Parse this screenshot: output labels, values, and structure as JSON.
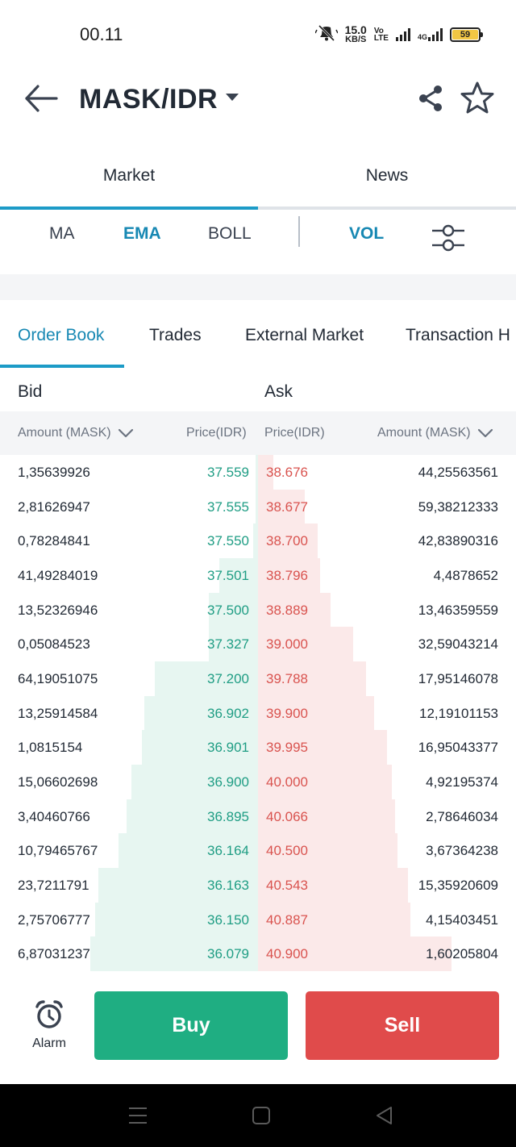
{
  "status_bar": {
    "time": "00.11",
    "net_speed_value": "15.0",
    "net_speed_unit": "KB/S",
    "volte_top": "Vo",
    "volte_bottom": "LTE",
    "network_type": "4G",
    "battery": "59",
    "icons": [
      "mute-icon",
      "signal-icon",
      "signal-4g-icon",
      "battery-icon"
    ]
  },
  "header": {
    "pair": "MASK/IDR",
    "icons": [
      "back-arrow-icon",
      "caret-down-icon",
      "share-icon",
      "star-icon"
    ]
  },
  "main_tabs": [
    {
      "label": "Market",
      "active": true
    },
    {
      "label": "News",
      "active": false
    }
  ],
  "indicators": [
    {
      "label": "MA",
      "active": false
    },
    {
      "label": "EMA",
      "active": true
    },
    {
      "label": "BOLL",
      "active": false
    },
    {
      "label": "VOL",
      "active": true
    }
  ],
  "sub_tabs": [
    {
      "label": "Order Book",
      "active": true
    },
    {
      "label": "Trades",
      "active": false
    },
    {
      "label": "External Market",
      "active": false
    },
    {
      "label": "Transaction H",
      "active": false
    }
  ],
  "book": {
    "bid_label": "Bid",
    "ask_label": "Ask",
    "bid_amount_header": "Amount (MASK)",
    "bid_price_header": "Price(IDR)",
    "ask_price_header": "Price(IDR)",
    "ask_amount_header": "Amount (MASK)",
    "colors": {
      "bid_text": "#1f9d84",
      "ask_text": "#d9534f",
      "bid_depth": "#e7f6f1",
      "ask_depth": "#fbe9e9"
    },
    "rows": [
      {
        "bid_amount": "1,35639926",
        "bid_price": "37.559",
        "ask_price": "38.676",
        "ask_amount": "44,25563561",
        "bid_depth": 0.01,
        "ask_depth": 0.06
      },
      {
        "bid_amount": "2,81626947",
        "bid_price": "37.555",
        "ask_price": "38.677",
        "ask_amount": "59,38212333",
        "bid_depth": 0.01,
        "ask_depth": 0.18
      },
      {
        "bid_amount": "0,78284841",
        "bid_price": "37.550",
        "ask_price": "38.700",
        "ask_amount": "42,83890316",
        "bid_depth": 0.02,
        "ask_depth": 0.23
      },
      {
        "bid_amount": "41,49284019",
        "bid_price": "37.501",
        "ask_price": "38.796",
        "ask_amount": "4,4878652",
        "bid_depth": 0.15,
        "ask_depth": 0.24
      },
      {
        "bid_amount": "13,52326946",
        "bid_price": "37.500",
        "ask_price": "38.889",
        "ask_amount": "13,46359559",
        "bid_depth": 0.19,
        "ask_depth": 0.28
      },
      {
        "bid_amount": "0,05084523",
        "bid_price": "37.327",
        "ask_price": "39.000",
        "ask_amount": "32,59043214",
        "bid_depth": 0.19,
        "ask_depth": 0.37
      },
      {
        "bid_amount": "64,19051075",
        "bid_price": "37.200",
        "ask_price": "39.788",
        "ask_amount": "17,95146078",
        "bid_depth": 0.4,
        "ask_depth": 0.42
      },
      {
        "bid_amount": "13,25914584",
        "bid_price": "36.902",
        "ask_price": "39.900",
        "ask_amount": "12,19101153",
        "bid_depth": 0.44,
        "ask_depth": 0.45
      },
      {
        "bid_amount": "1,0815154",
        "bid_price": "36.901",
        "ask_price": "39.995",
        "ask_amount": "16,95043377",
        "bid_depth": 0.45,
        "ask_depth": 0.5
      },
      {
        "bid_amount": "15,06602698",
        "bid_price": "36.900",
        "ask_price": "40.000",
        "ask_amount": "4,92195374",
        "bid_depth": 0.49,
        "ask_depth": 0.52
      },
      {
        "bid_amount": "3,40460766",
        "bid_price": "36.895",
        "ask_price": "40.066",
        "ask_amount": "2,78646034",
        "bid_depth": 0.51,
        "ask_depth": 0.53
      },
      {
        "bid_amount": "10,79465767",
        "bid_price": "36.164",
        "ask_price": "40.500",
        "ask_amount": "3,67364238",
        "bid_depth": 0.54,
        "ask_depth": 0.54
      },
      {
        "bid_amount": "23,7211791",
        "bid_price": "36.163",
        "ask_price": "40.543",
        "ask_amount": "15,35920609",
        "bid_depth": 0.62,
        "ask_depth": 0.58
      },
      {
        "bid_amount": "2,75706777",
        "bid_price": "36.150",
        "ask_price": "40.887",
        "ask_amount": "4,15403451",
        "bid_depth": 0.63,
        "ask_depth": 0.59
      },
      {
        "bid_amount": "6,87031237",
        "bid_price": "36.079",
        "ask_price": "40.900",
        "ask_amount": "1,60205804",
        "bid_depth": 0.65,
        "ask_depth": 0.75
      }
    ]
  },
  "actions": {
    "alarm_label": "Alarm",
    "buy_label": "Buy",
    "sell_label": "Sell",
    "colors": {
      "buy": "#1fae82",
      "sell": "#e04b4b"
    }
  },
  "nav_bar": {
    "icons": [
      "menu-icon",
      "home-square-icon",
      "back-triangle-icon"
    ]
  }
}
